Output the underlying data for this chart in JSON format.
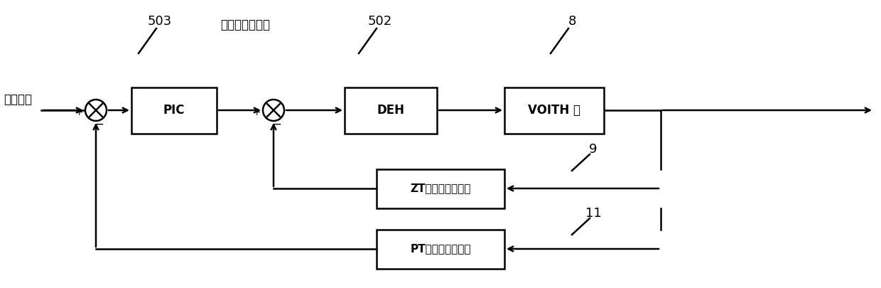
{
  "bg_color": "#ffffff",
  "line_color": "#000000",
  "text_color": "#000000",
  "fig_width": 12.4,
  "fig_height": 4.05,
  "dpi": 100,
  "label_givenpressure": "给定压力",
  "label_calcopen": "计算的给定开度",
  "label_503": "503",
  "label_502": "502",
  "label_8": "8",
  "label_9": "9",
  "label_11": "11",
  "block_PIC": "PIC",
  "block_DEH": "DEH",
  "block_VOITH": "VOITH 阀",
  "block_ZT": "ZT（阀位变送器）",
  "block_PT": "PT（压力变送器）",
  "fontsize_block": 12,
  "fontsize_label": 12,
  "fontsize_ref": 13,
  "lw": 1.8
}
